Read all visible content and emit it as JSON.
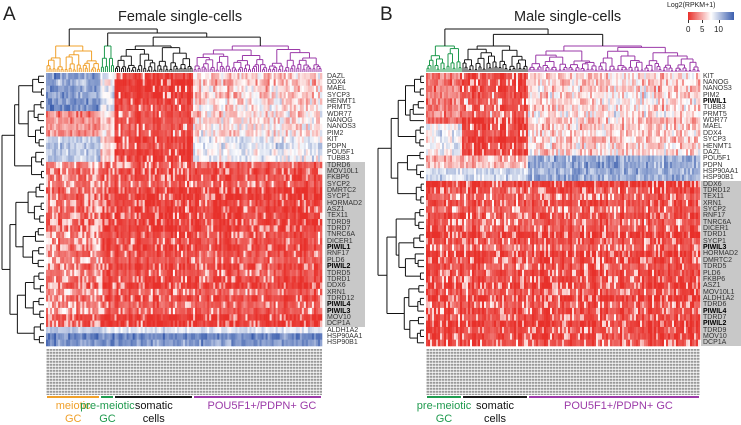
{
  "chart_data": {
    "type": "heatmap",
    "colorbar": {
      "label": "Log2(RPKM+1)",
      "ticks": [
        "0",
        "5",
        "10"
      ],
      "range": [
        0,
        12
      ],
      "colors": {
        "low": "#e8302a",
        "mid": "#ffffff",
        "high": "#3b5eae"
      }
    },
    "panels": [
      {
        "letter": "A",
        "title": "Female single-cells",
        "genes": [
          "DAZL",
          "DDX4",
          "MAEL",
          "SYCP3",
          "HENMT1",
          "PRMT5",
          "WDR77",
          "NANOG",
          "NANOS3",
          "PIM2",
          "KIT",
          "PDPN",
          "POU5F1",
          "TUBB3",
          "TDRD6",
          "MOV10L1",
          "FKBP6",
          "SYCP2",
          "DMRTC2",
          "SYCP1",
          "HORMAD2",
          "ASZ1",
          "TEX11",
          "TDRD9",
          "TDRD7",
          "TNRC6A",
          "DICER1",
          "PIWIL1",
          "RNF17",
          "PLD6",
          "PIWIL2",
          "TDRD5",
          "TDRD1",
          "DDX6",
          "XRN1",
          "TDRD12",
          "PIWIL4",
          "PIWIL3",
          "MOV10",
          "DCP1A",
          "ALDH1A2",
          "HSP90AA1",
          "HSP90B1"
        ],
        "highlighted_gene_range": [
          "TDRD6",
          "DCP1A"
        ],
        "bold_genes": [
          "PIWIL1",
          "PIWIL2",
          "PIWIL3",
          "PIWIL4"
        ],
        "groups": [
          {
            "label_line1": "meiotic",
            "label_line2": "GC",
            "color": "#f0a02a",
            "n_cells": 27
          },
          {
            "label_line1": "pre-meiotic",
            "label_line2": "GC",
            "color": "#1f9a4e",
            "n_cells": 7
          },
          {
            "label_line1": "somatic",
            "label_line2": "cells",
            "color": "#1a1a1a",
            "n_cells": 39
          },
          {
            "label_line1": "POU5F1+/PDPN+ GC",
            "label_line2": "",
            "color": "#9b3aa8",
            "n_cells": 64
          }
        ]
      },
      {
        "letter": "B",
        "title": "Male single-cells",
        "genes": [
          "KIT",
          "NANOG",
          "NANOS3",
          "PIM2",
          "PIWIL1",
          "TUBB3",
          "PRMT5",
          "WDR77",
          "MAEL",
          "DDX4",
          "SYCP3",
          "HENMT1",
          "DAZL",
          "POU5F1",
          "PDPN",
          "HSP90AA1",
          "HSP90B1",
          "DDX6",
          "TDRD12",
          "TEX11",
          "XRN1",
          "SYCP2",
          "RNF17",
          "TNRC6A",
          "DICER1",
          "TDRD1",
          "SYCP1",
          "PIWIL3",
          "HORMAD2",
          "DMRTC2",
          "TDRD5",
          "PLD6",
          "FKBP6",
          "ASZ1",
          "MOV10L1",
          "ALDH1A2",
          "TDRD6",
          "PIWIL4",
          "TDRD7",
          "PIWIL2",
          "TDRD9",
          "MOV10",
          "DCP1A"
        ],
        "highlighted_gene_range": [
          "DDX6",
          "DCP1A"
        ],
        "bold_genes": [
          "PIWIL1",
          "PIWIL2",
          "PIWIL3",
          "PIWIL4"
        ],
        "groups": [
          {
            "label_line1": "pre-meiotic",
            "label_line2": "GC",
            "color": "#1f9a4e",
            "n_cells": 18
          },
          {
            "label_line1": "somatic",
            "label_line2": "cells",
            "color": "#1a1a1a",
            "n_cells": 33
          },
          {
            "label_line1": "POU5F1+/PDPN+ GC",
            "label_line2": "",
            "color": "#9b3aa8",
            "n_cells": 86
          }
        ]
      }
    ]
  }
}
